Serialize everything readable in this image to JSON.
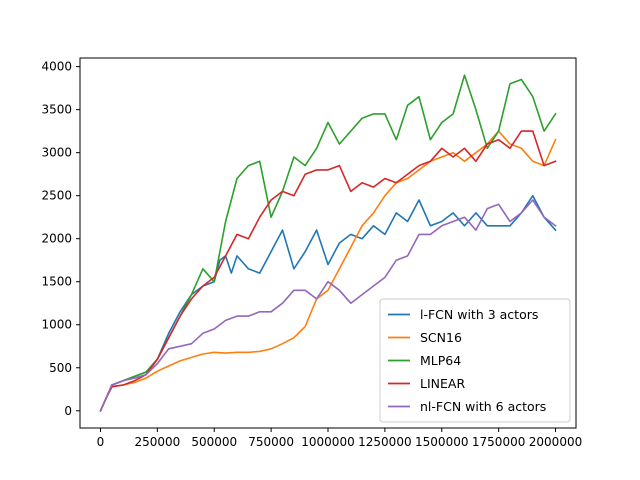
{
  "chart_data": {
    "type": "line",
    "title": "",
    "xlabel": "",
    "ylabel": "",
    "xlim": [
      -90000,
      2090000
    ],
    "ylim": [
      -200,
      4100
    ],
    "xticks": [
      0,
      250000,
      500000,
      750000,
      1000000,
      1250000,
      1500000,
      1750000,
      2000000
    ],
    "yticks": [
      0,
      500,
      1000,
      1500,
      2000,
      2500,
      3000,
      3500,
      4000
    ],
    "grid": false,
    "legend_position": "lower right",
    "series": [
      {
        "name": "l-FCN with 3 actors",
        "color": "#1f77b4",
        "points": [
          [
            0,
            0
          ],
          [
            25000,
            150
          ],
          [
            50000,
            300
          ],
          [
            100000,
            350
          ],
          [
            150000,
            400
          ],
          [
            200000,
            450
          ],
          [
            250000,
            600
          ],
          [
            300000,
            900
          ],
          [
            350000,
            1150
          ],
          [
            400000,
            1350
          ],
          [
            450000,
            1450
          ],
          [
            500000,
            1500
          ],
          [
            525000,
            1750
          ],
          [
            550000,
            1800
          ],
          [
            575000,
            1600
          ],
          [
            600000,
            1800
          ],
          [
            650000,
            1650
          ],
          [
            700000,
            1600
          ],
          [
            750000,
            1850
          ],
          [
            800000,
            2100
          ],
          [
            850000,
            1650
          ],
          [
            900000,
            1850
          ],
          [
            950000,
            2100
          ],
          [
            1000000,
            1700
          ],
          [
            1050000,
            1950
          ],
          [
            1100000,
            2050
          ],
          [
            1150000,
            2000
          ],
          [
            1200000,
            2150
          ],
          [
            1250000,
            2050
          ],
          [
            1300000,
            2300
          ],
          [
            1350000,
            2200
          ],
          [
            1400000,
            2450
          ],
          [
            1450000,
            2150
          ],
          [
            1500000,
            2200
          ],
          [
            1550000,
            2300
          ],
          [
            1600000,
            2150
          ],
          [
            1650000,
            2300
          ],
          [
            1700000,
            2150
          ],
          [
            1750000,
            2150
          ],
          [
            1800000,
            2150
          ],
          [
            1850000,
            2300
          ],
          [
            1900000,
            2500
          ],
          [
            1950000,
            2250
          ],
          [
            2000000,
            2100
          ]
        ]
      },
      {
        "name": "SCN16",
        "color": "#ff7f0e",
        "points": [
          [
            0,
            0
          ],
          [
            25000,
            150
          ],
          [
            50000,
            280
          ],
          [
            100000,
            300
          ],
          [
            150000,
            330
          ],
          [
            200000,
            380
          ],
          [
            250000,
            460
          ],
          [
            300000,
            520
          ],
          [
            350000,
            580
          ],
          [
            400000,
            620
          ],
          [
            450000,
            660
          ],
          [
            500000,
            680
          ],
          [
            550000,
            670
          ],
          [
            600000,
            680
          ],
          [
            650000,
            680
          ],
          [
            700000,
            690
          ],
          [
            750000,
            720
          ],
          [
            800000,
            780
          ],
          [
            850000,
            850
          ],
          [
            900000,
            980
          ],
          [
            950000,
            1300
          ],
          [
            1000000,
            1400
          ],
          [
            1050000,
            1650
          ],
          [
            1100000,
            1900
          ],
          [
            1150000,
            2150
          ],
          [
            1200000,
            2300
          ],
          [
            1250000,
            2500
          ],
          [
            1300000,
            2650
          ],
          [
            1350000,
            2700
          ],
          [
            1400000,
            2800
          ],
          [
            1450000,
            2900
          ],
          [
            1500000,
            2950
          ],
          [
            1550000,
            3000
          ],
          [
            1600000,
            2900
          ],
          [
            1650000,
            3000
          ],
          [
            1700000,
            3100
          ],
          [
            1750000,
            3250
          ],
          [
            1800000,
            3100
          ],
          [
            1850000,
            3050
          ],
          [
            1900000,
            2900
          ],
          [
            1950000,
            2850
          ],
          [
            2000000,
            3150
          ]
        ]
      },
      {
        "name": "MLP64",
        "color": "#2ca02c",
        "points": [
          [
            0,
            0
          ],
          [
            25000,
            150
          ],
          [
            50000,
            300
          ],
          [
            100000,
            350
          ],
          [
            150000,
            400
          ],
          [
            200000,
            450
          ],
          [
            250000,
            600
          ],
          [
            300000,
            850
          ],
          [
            350000,
            1100
          ],
          [
            400000,
            1350
          ],
          [
            450000,
            1650
          ],
          [
            500000,
            1500
          ],
          [
            550000,
            2200
          ],
          [
            600000,
            2700
          ],
          [
            650000,
            2850
          ],
          [
            700000,
            2900
          ],
          [
            750000,
            2250
          ],
          [
            800000,
            2550
          ],
          [
            850000,
            2950
          ],
          [
            900000,
            2850
          ],
          [
            950000,
            3050
          ],
          [
            1000000,
            3350
          ],
          [
            1050000,
            3100
          ],
          [
            1100000,
            3250
          ],
          [
            1150000,
            3400
          ],
          [
            1200000,
            3450
          ],
          [
            1250000,
            3450
          ],
          [
            1300000,
            3150
          ],
          [
            1350000,
            3550
          ],
          [
            1400000,
            3650
          ],
          [
            1450000,
            3150
          ],
          [
            1500000,
            3350
          ],
          [
            1550000,
            3450
          ],
          [
            1600000,
            3900
          ],
          [
            1650000,
            3500
          ],
          [
            1700000,
            3050
          ],
          [
            1750000,
            3250
          ],
          [
            1800000,
            3800
          ],
          [
            1850000,
            3850
          ],
          [
            1900000,
            3650
          ],
          [
            1950000,
            3250
          ],
          [
            2000000,
            3450
          ]
        ]
      },
      {
        "name": "LINEAR",
        "color": "#d62728",
        "points": [
          [
            0,
            0
          ],
          [
            25000,
            150
          ],
          [
            50000,
            280
          ],
          [
            100000,
            300
          ],
          [
            150000,
            350
          ],
          [
            200000,
            420
          ],
          [
            250000,
            600
          ],
          [
            300000,
            850
          ],
          [
            350000,
            1100
          ],
          [
            400000,
            1300
          ],
          [
            450000,
            1450
          ],
          [
            500000,
            1550
          ],
          [
            550000,
            1800
          ],
          [
            600000,
            2050
          ],
          [
            650000,
            2000
          ],
          [
            700000,
            2250
          ],
          [
            750000,
            2450
          ],
          [
            800000,
            2550
          ],
          [
            850000,
            2500
          ],
          [
            900000,
            2750
          ],
          [
            950000,
            2800
          ],
          [
            1000000,
            2800
          ],
          [
            1050000,
            2850
          ],
          [
            1100000,
            2550
          ],
          [
            1150000,
            2650
          ],
          [
            1200000,
            2600
          ],
          [
            1250000,
            2700
          ],
          [
            1300000,
            2650
          ],
          [
            1350000,
            2750
          ],
          [
            1400000,
            2850
          ],
          [
            1450000,
            2900
          ],
          [
            1500000,
            3050
          ],
          [
            1550000,
            2950
          ],
          [
            1600000,
            3050
          ],
          [
            1650000,
            2900
          ],
          [
            1700000,
            3100
          ],
          [
            1750000,
            3150
          ],
          [
            1800000,
            3050
          ],
          [
            1850000,
            3250
          ],
          [
            1900000,
            3250
          ],
          [
            1950000,
            2850
          ],
          [
            2000000,
            2900
          ]
        ]
      },
      {
        "name": "nl-FCN with 6 actors",
        "color": "#9467bd",
        "points": [
          [
            0,
            0
          ],
          [
            25000,
            150
          ],
          [
            50000,
            300
          ],
          [
            100000,
            350
          ],
          [
            150000,
            380
          ],
          [
            200000,
            420
          ],
          [
            250000,
            550
          ],
          [
            300000,
            720
          ],
          [
            350000,
            750
          ],
          [
            400000,
            780
          ],
          [
            450000,
            900
          ],
          [
            500000,
            950
          ],
          [
            550000,
            1050
          ],
          [
            600000,
            1100
          ],
          [
            650000,
            1100
          ],
          [
            700000,
            1150
          ],
          [
            750000,
            1150
          ],
          [
            800000,
            1250
          ],
          [
            850000,
            1400
          ],
          [
            900000,
            1400
          ],
          [
            950000,
            1300
          ],
          [
            1000000,
            1500
          ],
          [
            1050000,
            1400
          ],
          [
            1100000,
            1250
          ],
          [
            1150000,
            1350
          ],
          [
            1200000,
            1450
          ],
          [
            1250000,
            1550
          ],
          [
            1300000,
            1750
          ],
          [
            1350000,
            1800
          ],
          [
            1400000,
            2050
          ],
          [
            1450000,
            2050
          ],
          [
            1500000,
            2150
          ],
          [
            1550000,
            2200
          ],
          [
            1600000,
            2250
          ],
          [
            1650000,
            2100
          ],
          [
            1700000,
            2350
          ],
          [
            1750000,
            2400
          ],
          [
            1800000,
            2200
          ],
          [
            1850000,
            2300
          ],
          [
            1900000,
            2450
          ],
          [
            1950000,
            2250
          ],
          [
            2000000,
            2150
          ]
        ]
      }
    ]
  }
}
